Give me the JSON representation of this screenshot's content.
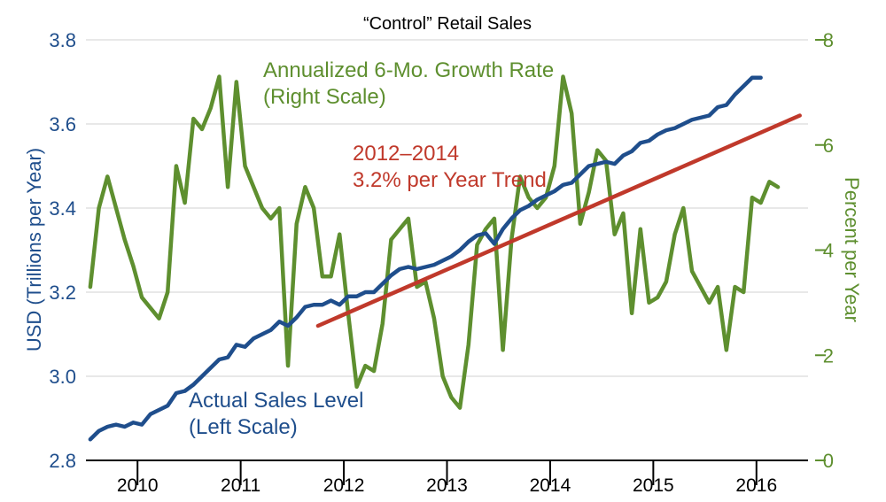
{
  "chart_data": {
    "type": "line",
    "title": "“Control” Retail Sales",
    "ylabel_left": "USD (Trillions per Year)",
    "ylabel_right": "Percent per Year",
    "ylim_left": [
      2.8,
      3.8
    ],
    "ylim_right": [
      0,
      8
    ],
    "yticks_left": [
      "2.8",
      "3.0",
      "3.2",
      "3.4",
      "3.6",
      "3.8"
    ],
    "yticks_right": [
      "0",
      "2",
      "4",
      "6",
      "8"
    ],
    "xlim": [
      2009.5,
      2016.5
    ],
    "year_labels": [
      "2010",
      "2011",
      "2012",
      "2013",
      "2014",
      "2015",
      "2016"
    ],
    "colors": {
      "sales": "#1f4e8c",
      "growth": "#5e8f2f",
      "trend": "#c0392b",
      "axis": "#000000",
      "grid": "#d0d0d0"
    },
    "annotations": {
      "sales_line1": "Actual Sales Level",
      "sales_line2": "(Left Scale)",
      "growth_line1": "Annualized 6-Mo. Growth Rate",
      "growth_line2": "(Right Scale)",
      "trend_line1": "2012–2014",
      "trend_line2": "3.2% per Year Trend"
    },
    "series": [
      {
        "name": "Actual Sales Level",
        "axis": "left",
        "start": 2009.542,
        "step": 0.08333,
        "values": [
          2.85,
          2.87,
          2.88,
          2.885,
          2.88,
          2.89,
          2.885,
          2.91,
          2.92,
          2.93,
          2.96,
          2.965,
          2.98,
          3.0,
          3.02,
          3.04,
          3.045,
          3.075,
          3.07,
          3.09,
          3.1,
          3.11,
          3.13,
          3.12,
          3.14,
          3.165,
          3.17,
          3.17,
          3.18,
          3.17,
          3.19,
          3.19,
          3.2,
          3.2,
          3.22,
          3.24,
          3.255,
          3.26,
          3.255,
          3.26,
          3.265,
          3.275,
          3.285,
          3.3,
          3.32,
          3.335,
          3.34,
          3.315,
          3.35,
          3.375,
          3.395,
          3.405,
          3.42,
          3.43,
          3.44,
          3.455,
          3.46,
          3.48,
          3.5,
          3.505,
          3.51,
          3.505,
          3.525,
          3.535,
          3.555,
          3.56,
          3.575,
          3.585,
          3.59,
          3.6,
          3.61,
          3.615,
          3.62,
          3.64,
          3.645,
          3.67,
          3.69,
          3.71,
          3.71
        ]
      },
      {
        "name": "Annualized 6-Mo. Growth Rate",
        "axis": "right",
        "start": 2009.542,
        "step": 0.08333,
        "values": [
          3.3,
          4.8,
          5.4,
          4.8,
          4.2,
          3.7,
          3.1,
          2.9,
          2.7,
          3.2,
          5.6,
          4.9,
          6.5,
          6.3,
          6.7,
          7.3,
          5.2,
          7.2,
          5.6,
          5.2,
          4.8,
          4.6,
          4.8,
          1.8,
          4.5,
          5.2,
          4.8,
          3.5,
          3.5,
          4.3,
          2.8,
          1.4,
          1.8,
          1.7,
          2.6,
          4.2,
          4.4,
          4.6,
          3.3,
          3.4,
          2.7,
          1.6,
          1.2,
          1.0,
          2.2,
          4.1,
          4.4,
          4.6,
          2.1,
          4.2,
          5.4,
          5.0,
          4.8,
          5.0,
          5.6,
          7.3,
          6.6,
          4.5,
          5.1,
          5.9,
          5.7,
          4.3,
          4.7,
          2.8,
          4.4,
          3.0,
          3.1,
          3.4,
          4.3,
          4.8,
          3.6,
          3.3,
          3.0,
          3.3,
          2.1,
          3.3,
          3.2,
          5.0,
          4.9,
          5.3,
          5.2
        ]
      },
      {
        "name": "2012–2014 3.2% per Year Trend",
        "axis": "left",
        "x": [
          2011.75,
          2016.42
        ],
        "values": [
          3.12,
          3.62
        ]
      }
    ]
  }
}
